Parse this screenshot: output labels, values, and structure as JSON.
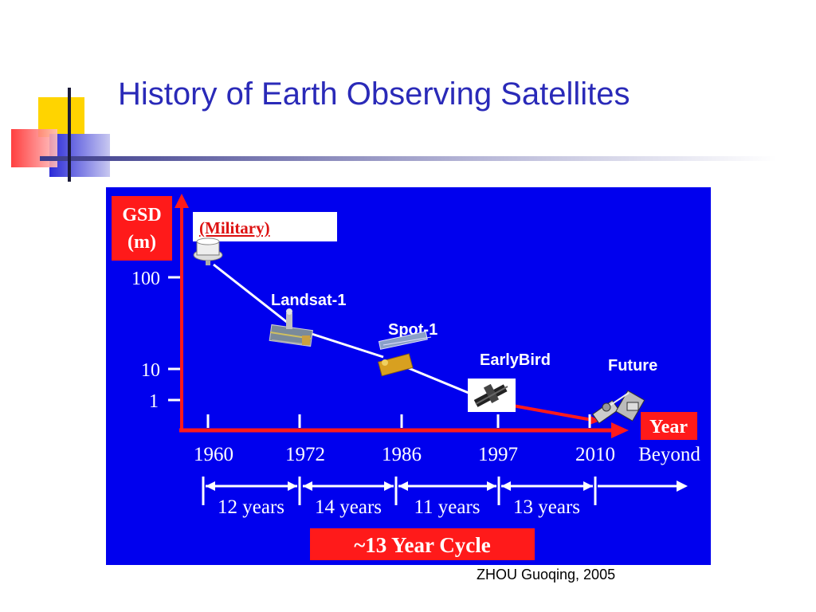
{
  "slide": {
    "title": "History of Earth Observing Satellites",
    "credit": "ZHOU Guoqing, 2005"
  },
  "diagram": {
    "y_axis_label_line1": "GSD",
    "y_axis_label_line2": "(m)",
    "x_axis_label": "Year",
    "military_label": "(Military)",
    "y_ticks": [
      "100",
      "10",
      "1"
    ],
    "x_ticks": [
      "1960",
      "1972",
      "1986",
      "1997",
      "2010",
      "Beyond"
    ],
    "satellites": [
      {
        "name": "",
        "icon": "military-satellite-icon"
      },
      {
        "name": "Landsat-1",
        "icon": "landsat-satellite-icon"
      },
      {
        "name": "Spot-1",
        "icon": "spot-satellite-icon"
      },
      {
        "name": "EarlyBird",
        "icon": "earlybird-satellite-icon"
      },
      {
        "name": "Future",
        "icon": "future-satellite-icon"
      }
    ],
    "intervals": [
      "12 years",
      "14 years",
      "11 years",
      "13 years"
    ],
    "cycle_label": "~13 Year Cycle",
    "colors": {
      "background": "#0000ee",
      "accent_red": "#ff1a1a",
      "title_blue": "#2a2ab8"
    }
  }
}
